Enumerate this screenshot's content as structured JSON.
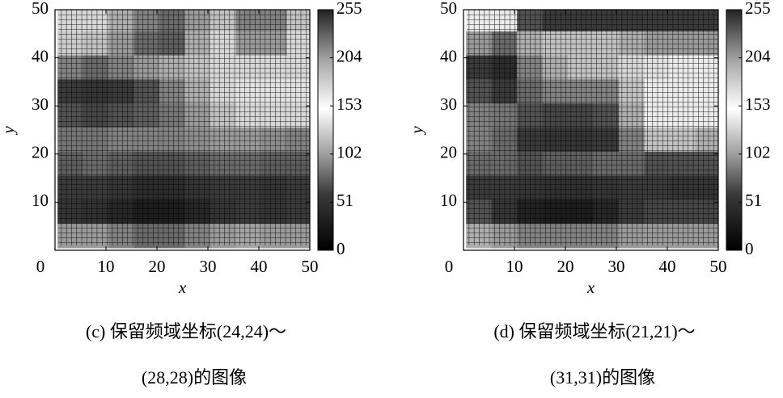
{
  "chart_data": [
    {
      "type": "heatmap",
      "xlabel": "x",
      "ylabel": "y",
      "xlim": [
        0,
        50
      ],
      "ylim": [
        0,
        50
      ],
      "xticks": [
        0,
        10,
        20,
        30,
        40,
        50
      ],
      "yticks": [
        10,
        20,
        30,
        40,
        50
      ],
      "clim": [
        0,
        255
      ],
      "cticks": [
        0,
        51,
        102,
        153,
        204,
        255
      ],
      "colormap": [
        [
          0,
          "#000000"
        ],
        [
          60,
          "#3a3a3a"
        ],
        [
          100,
          "#9a9a9a"
        ],
        [
          150,
          "#ffffff"
        ],
        [
          200,
          "#a8a8a8"
        ],
        [
          255,
          "#222222"
        ]
      ],
      "x": [
        3,
        8,
        13,
        18,
        23,
        28,
        33,
        38,
        43,
        48
      ],
      "y": [
        48,
        43,
        38,
        33,
        28,
        23,
        18,
        13,
        8,
        3
      ],
      "values": [
        [
          130,
          130,
          110,
          90,
          80,
          100,
          120,
          90,
          90,
          120
        ],
        [
          125,
          120,
          100,
          80,
          75,
          110,
          130,
          100,
          100,
          130
        ],
        [
          90,
          80,
          90,
          100,
          110,
          120,
          130,
          130,
          130,
          130
        ],
        [
          60,
          55,
          60,
          70,
          90,
          110,
          130,
          135,
          135,
          135
        ],
        [
          70,
          65,
          70,
          75,
          85,
          100,
          120,
          130,
          130,
          130
        ],
        [
          85,
          85,
          90,
          90,
          90,
          95,
          100,
          100,
          95,
          90
        ],
        [
          75,
          80,
          75,
          70,
          70,
          75,
          80,
          80,
          75,
          75
        ],
        [
          60,
          60,
          55,
          45,
          45,
          55,
          60,
          60,
          55,
          60
        ],
        [
          55,
          50,
          40,
          30,
          30,
          40,
          55,
          60,
          55,
          60
        ],
        [
          100,
          100,
          90,
          80,
          80,
          90,
          100,
          105,
          100,
          100
        ]
      ],
      "caption": [
        "(c) 保留频域坐标(24,24)～",
        "(28,28)的图像"
      ]
    },
    {
      "type": "heatmap",
      "xlabel": "x",
      "ylabel": "y",
      "xlim": [
        0,
        50
      ],
      "ylim": [
        0,
        50
      ],
      "xticks": [
        0,
        10,
        20,
        30,
        40,
        50
      ],
      "yticks": [
        10,
        20,
        30,
        40,
        50
      ],
      "clim": [
        0,
        255
      ],
      "cticks": [
        0,
        51,
        102,
        153,
        204,
        255
      ],
      "colormap": [
        [
          0,
          "#000000"
        ],
        [
          60,
          "#3a3a3a"
        ],
        [
          100,
          "#9a9a9a"
        ],
        [
          150,
          "#ffffff"
        ],
        [
          200,
          "#a8a8a8"
        ],
        [
          255,
          "#222222"
        ]
      ],
      "x": [
        3,
        8,
        13,
        18,
        23,
        28,
        33,
        38,
        43,
        48
      ],
      "y": [
        48,
        43,
        38,
        33,
        28,
        23,
        18,
        13,
        8,
        3
      ],
      "values": [
        [
          140,
          140,
          70,
          60,
          60,
          60,
          60,
          60,
          60,
          60
        ],
        [
          100,
          80,
          110,
          120,
          120,
          120,
          110,
          100,
          100,
          100
        ],
        [
          60,
          45,
          90,
          110,
          120,
          120,
          130,
          135,
          140,
          140
        ],
        [
          70,
          60,
          80,
          90,
          90,
          90,
          120,
          140,
          140,
          140
        ],
        [
          90,
          85,
          70,
          65,
          65,
          70,
          110,
          140,
          140,
          140
        ],
        [
          90,
          80,
          60,
          55,
          55,
          60,
          90,
          120,
          120,
          110
        ],
        [
          80,
          80,
          70,
          75,
          75,
          80,
          80,
          70,
          70,
          70
        ],
        [
          60,
          60,
          55,
          50,
          50,
          55,
          60,
          60,
          55,
          55
        ],
        [
          70,
          55,
          35,
          30,
          30,
          40,
          60,
          65,
          65,
          65
        ],
        [
          110,
          100,
          90,
          90,
          90,
          90,
          100,
          100,
          100,
          100
        ]
      ],
      "caption": [
        "(d) 保留频域坐标(21,21)～",
        "(31,31)的图像"
      ]
    }
  ]
}
